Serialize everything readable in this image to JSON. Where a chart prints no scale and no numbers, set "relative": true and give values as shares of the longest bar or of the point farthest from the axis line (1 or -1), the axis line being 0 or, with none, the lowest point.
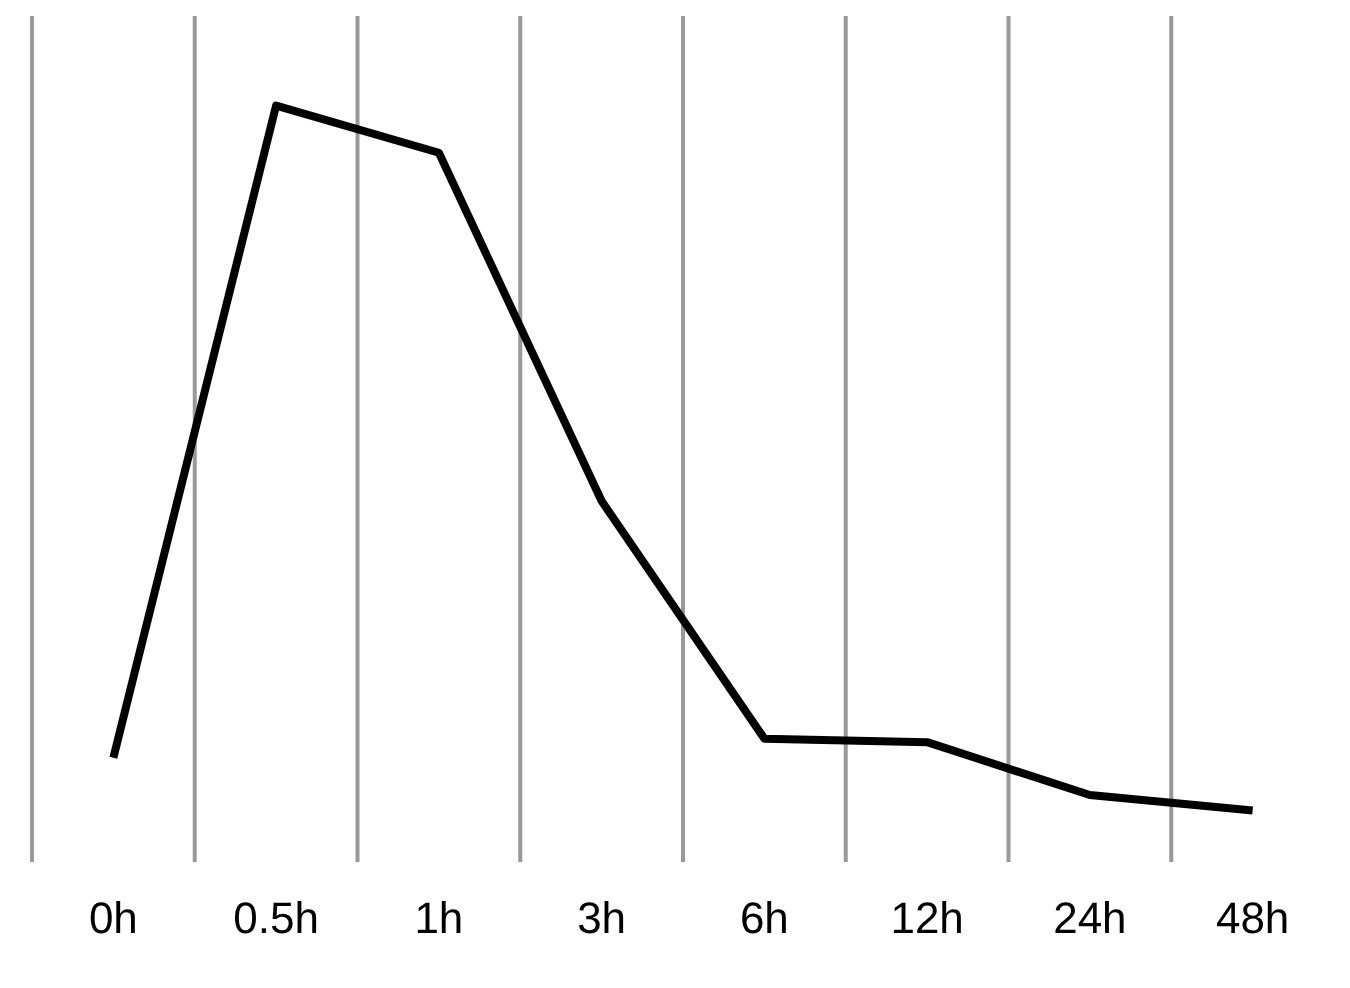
{
  "chart_data": {
    "type": "line",
    "relative": true,
    "categories": [
      "0h",
      "0.5h",
      "1h",
      "3h",
      "6h",
      "12h",
      "24h",
      "48h"
    ],
    "series": [
      {
        "color": "#000000",
        "values": [
          0.075,
          1,
          0.933,
          0.439,
          0.102,
          0.097,
          0.022,
          0
        ]
      }
    ],
    "grid": "x",
    "marker": "none",
    "line_style": "solid",
    "legend": false
  }
}
